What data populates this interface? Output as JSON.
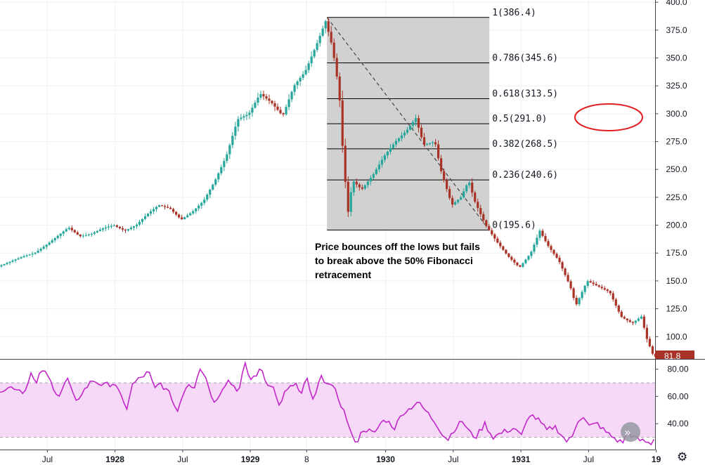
{
  "chart_data": [
    {
      "type": "candlestick",
      "instrument": "",
      "ylim": [
        80,
        402
      ],
      "price_axis_ticks": [
        "400.0",
        "375.0",
        "350.0",
        "325.0",
        "300.0",
        "275.0",
        "250.0",
        "225.0",
        "200.0",
        "175.0",
        "150.0",
        "125.0",
        "100.0"
      ],
      "price_axis_values": [
        400,
        375,
        350,
        325,
        300,
        275,
        250,
        225,
        200,
        175,
        150,
        125,
        100
      ],
      "last_price_label": "81.8",
      "last_price": 81.8,
      "x_axis_ticks": [
        {
          "label": "Jul",
          "bold": false,
          "month": 9
        },
        {
          "label": "1928",
          "bold": true,
          "month": 15
        },
        {
          "label": "Jul",
          "bold": false,
          "month": 21
        },
        {
          "label": "1929",
          "bold": true,
          "month": 27
        },
        {
          "label": "8",
          "bold": false,
          "month": 32
        },
        {
          "label": "1930",
          "bold": true,
          "month": 39
        },
        {
          "label": "Jul",
          "bold": false,
          "month": 45
        },
        {
          "label": "1931",
          "bold": true,
          "month": 51
        },
        {
          "label": "Jul",
          "bold": false,
          "month": 57
        },
        {
          "label": "19",
          "bold": true,
          "month": 63
        }
      ],
      "x_range_months": [
        4.8,
        62.9
      ],
      "path_key_points": [
        [
          4.8,
          163
        ],
        [
          6,
          168
        ],
        [
          7,
          172
        ],
        [
          8,
          175
        ],
        [
          9,
          182
        ],
        [
          10,
          190
        ],
        [
          11,
          198
        ],
        [
          12,
          190
        ],
        [
          13,
          192
        ],
        [
          14,
          197
        ],
        [
          15,
          200
        ],
        [
          16,
          195
        ],
        [
          17,
          200
        ],
        [
          18,
          210
        ],
        [
          19,
          218
        ],
        [
          20,
          215
        ],
        [
          21,
          205
        ],
        [
          22,
          212
        ],
        [
          23,
          222
        ],
        [
          24,
          240
        ],
        [
          25,
          262
        ],
        [
          26,
          295
        ],
        [
          27,
          300
        ],
        [
          28,
          318
        ],
        [
          29,
          310
        ],
        [
          30,
          298
        ],
        [
          31,
          325
        ],
        [
          32,
          338
        ],
        [
          33,
          362
        ],
        [
          33.8,
          383
        ],
        [
          34.4,
          360
        ],
        [
          35,
          320
        ],
        [
          35.4,
          255
        ],
        [
          35.8,
          212
        ],
        [
          36.2,
          240
        ],
        [
          37,
          232
        ],
        [
          38,
          245
        ],
        [
          39,
          262
        ],
        [
          40,
          275
        ],
        [
          41,
          285
        ],
        [
          41.8,
          296
        ],
        [
          42.5,
          272
        ],
        [
          43.5,
          275
        ],
        [
          44,
          250
        ],
        [
          45,
          218
        ],
        [
          45.8,
          225
        ],
        [
          46.5,
          240
        ],
        [
          47,
          222
        ],
        [
          48,
          200
        ],
        [
          49,
          185
        ],
        [
          50,
          172
        ],
        [
          51,
          162
        ],
        [
          52,
          175
        ],
        [
          52.8,
          195
        ],
        [
          53.5,
          182
        ],
        [
          54.5,
          168
        ],
        [
          55.5,
          145
        ],
        [
          56,
          128
        ],
        [
          57,
          150
        ],
        [
          58,
          145
        ],
        [
          59,
          140
        ],
        [
          60,
          118
        ],
        [
          61,
          112
        ],
        [
          61.8,
          118
        ],
        [
          62.3,
          98
        ],
        [
          62.9,
          82
        ]
      ],
      "candle_step_months": 0.25,
      "up_color": "#26a69a",
      "down_color": "#a93226",
      "fibonacci_retracement": {
        "high": 386.4,
        "low": 195.6,
        "start_month": 33.8,
        "end_month": 48.2,
        "levels": [
          {
            "ratio": "1",
            "value": 386.4,
            "label": "1(386.4)"
          },
          {
            "ratio": "0.786",
            "value": 345.6,
            "label": "0.786(345.6)"
          },
          {
            "ratio": "0.618",
            "value": 313.5,
            "label": "0.618(313.5)"
          },
          {
            "ratio": "0.5",
            "value": 291.0,
            "label": "0.5(291.0)"
          },
          {
            "ratio": "0.382",
            "value": 268.5,
            "label": "0.382(268.5)"
          },
          {
            "ratio": "0.236",
            "value": 240.6,
            "label": "0.236(240.6)"
          },
          {
            "ratio": "0",
            "value": 195.6,
            "label": "0(195.6)"
          }
        ],
        "fill_color": "#cccccc",
        "highlighted_level": "0.5(291.0)",
        "highlight_color": "#e02020"
      },
      "annotation": {
        "lines": [
          "Price bounces off the lows but fails",
          "to break above the 50% Fibonacci",
          "retracement"
        ]
      }
    },
    {
      "type": "line",
      "indicator": "",
      "ylim": [
        21,
        87
      ],
      "axis_ticks": [
        "80.00",
        "60.00",
        "40.00"
      ],
      "axis_values": [
        80,
        60,
        40
      ],
      "bands": [
        30,
        70
      ],
      "band_fill": "#f5d9f7",
      "line_color": "#c227c9",
      "key_points": [
        [
          4.8,
          65
        ],
        [
          6,
          67
        ],
        [
          7,
          63
        ],
        [
          7.5,
          78
        ],
        [
          8,
          68
        ],
        [
          8.5,
          80
        ],
        [
          9,
          75
        ],
        [
          10,
          60
        ],
        [
          10.8,
          73
        ],
        [
          11.5,
          55
        ],
        [
          12,
          62
        ],
        [
          13,
          72
        ],
        [
          14,
          68
        ],
        [
          15,
          70
        ],
        [
          15.5,
          60
        ],
        [
          16,
          50
        ],
        [
          16.5,
          68
        ],
        [
          17,
          72
        ],
        [
          18,
          78
        ],
        [
          18.5,
          65
        ],
        [
          19,
          70
        ],
        [
          20,
          60
        ],
        [
          20.5,
          48
        ],
        [
          21,
          62
        ],
        [
          21.5,
          70
        ],
        [
          22,
          66
        ],
        [
          22.5,
          82
        ],
        [
          23,
          75
        ],
        [
          23.8,
          55
        ],
        [
          24.5,
          66
        ],
        [
          25,
          72
        ],
        [
          26,
          64
        ],
        [
          26.5,
          84
        ],
        [
          27,
          72
        ],
        [
          28,
          80
        ],
        [
          28.5,
          68
        ],
        [
          29,
          70
        ],
        [
          29.5,
          52
        ],
        [
          30,
          62
        ],
        [
          31,
          70
        ],
        [
          31.5,
          60
        ],
        [
          32,
          74
        ],
        [
          32.6,
          55
        ],
        [
          33.2,
          74
        ],
        [
          33.8,
          71
        ],
        [
          34.6,
          63
        ],
        [
          35.5,
          45
        ],
        [
          36,
          30
        ],
        [
          36.5,
          27
        ],
        [
          37,
          36
        ],
        [
          37.5,
          35
        ],
        [
          38,
          32
        ],
        [
          38.5,
          40
        ],
        [
          39,
          43
        ],
        [
          39.8,
          37
        ],
        [
          40.5,
          48
        ],
        [
          41,
          50
        ],
        [
          41.8,
          56
        ],
        [
          42.5,
          50
        ],
        [
          43.5,
          40
        ],
        [
          44,
          33
        ],
        [
          44.5,
          28
        ],
        [
          45,
          35
        ],
        [
          45.8,
          42
        ],
        [
          46.5,
          33
        ],
        [
          47,
          30
        ],
        [
          47.8,
          40
        ],
        [
          48.5,
          30
        ],
        [
          49.5,
          34
        ],
        [
          50.5,
          37
        ],
        [
          51,
          30
        ],
        [
          51.8,
          47
        ],
        [
          52.5,
          43
        ],
        [
          53.3,
          35
        ],
        [
          54,
          38
        ],
        [
          54.5,
          33
        ],
        [
          55,
          27
        ],
        [
          55.5,
          29
        ],
        [
          56,
          42
        ],
        [
          56.5,
          46
        ],
        [
          57,
          38
        ],
        [
          57.8,
          40
        ],
        [
          58.5,
          34
        ],
        [
          59.5,
          28
        ],
        [
          60,
          26
        ],
        [
          60.5,
          34
        ],
        [
          61,
          30
        ],
        [
          61.5,
          28
        ],
        [
          62,
          27
        ],
        [
          62.5,
          25
        ],
        [
          62.9,
          30
        ]
      ]
    }
  ]
}
